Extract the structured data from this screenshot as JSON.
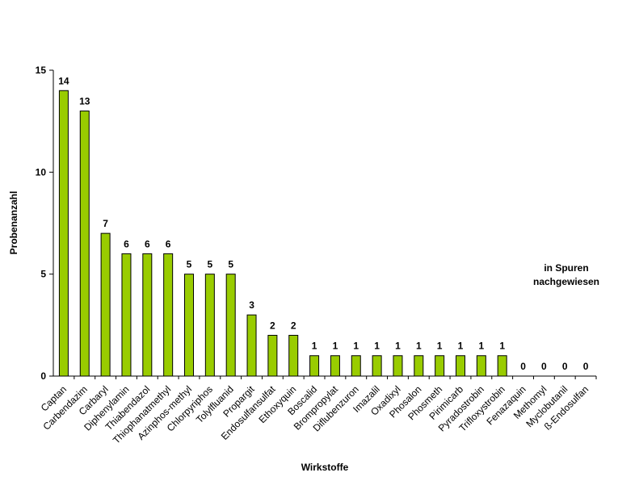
{
  "chart_data": {
    "type": "bar",
    "title": "",
    "xlabel": "Wirkstoffe",
    "ylabel": "Probenanzahl",
    "ylim": [
      0,
      15
    ],
    "yticks": [
      "0",
      "5",
      "10",
      "15"
    ],
    "categories": [
      "Captan",
      "Carbendazim",
      "Carbaryl",
      "Diphenylamin",
      "Thiabendazol",
      "Thiophanatmethyl",
      "Azinphos-methyl",
      "Chlorpyriphos",
      "Tolylfluanid",
      "Propargit",
      "Endosulfansulfat",
      "Ethoxyquin",
      "Boscalid",
      "Brompropylat",
      "Diflubenzuron",
      "Imazalil",
      "Oxadixyl",
      "Phosalon",
      "Phosmeth",
      "Pirimicarb",
      "Pyradostrobin",
      "Trifloxystrobin",
      "Fenazaquin",
      "Methomyl",
      "Myclobutanil",
      "ß-Endosulfan"
    ],
    "values": [
      14,
      13,
      7,
      6,
      6,
      6,
      5,
      5,
      5,
      3,
      2,
      2,
      1,
      1,
      1,
      1,
      1,
      1,
      1,
      1,
      1,
      1,
      0,
      0,
      0,
      0
    ],
    "value_labels": [
      "14",
      "13",
      "7",
      "6",
      "6",
      "6",
      "5",
      "5",
      "5",
      "3",
      "2",
      "2",
      "1",
      "1",
      "1",
      "1",
      "1",
      "1",
      "1",
      "1",
      "1",
      "1",
      "0",
      "0",
      "0",
      "0"
    ],
    "annotation_lines": [
      "in Spuren",
      "nachgewiesen"
    ],
    "bar_color": "#99CC00",
    "bar_stroke": "#000000",
    "grid": false
  }
}
